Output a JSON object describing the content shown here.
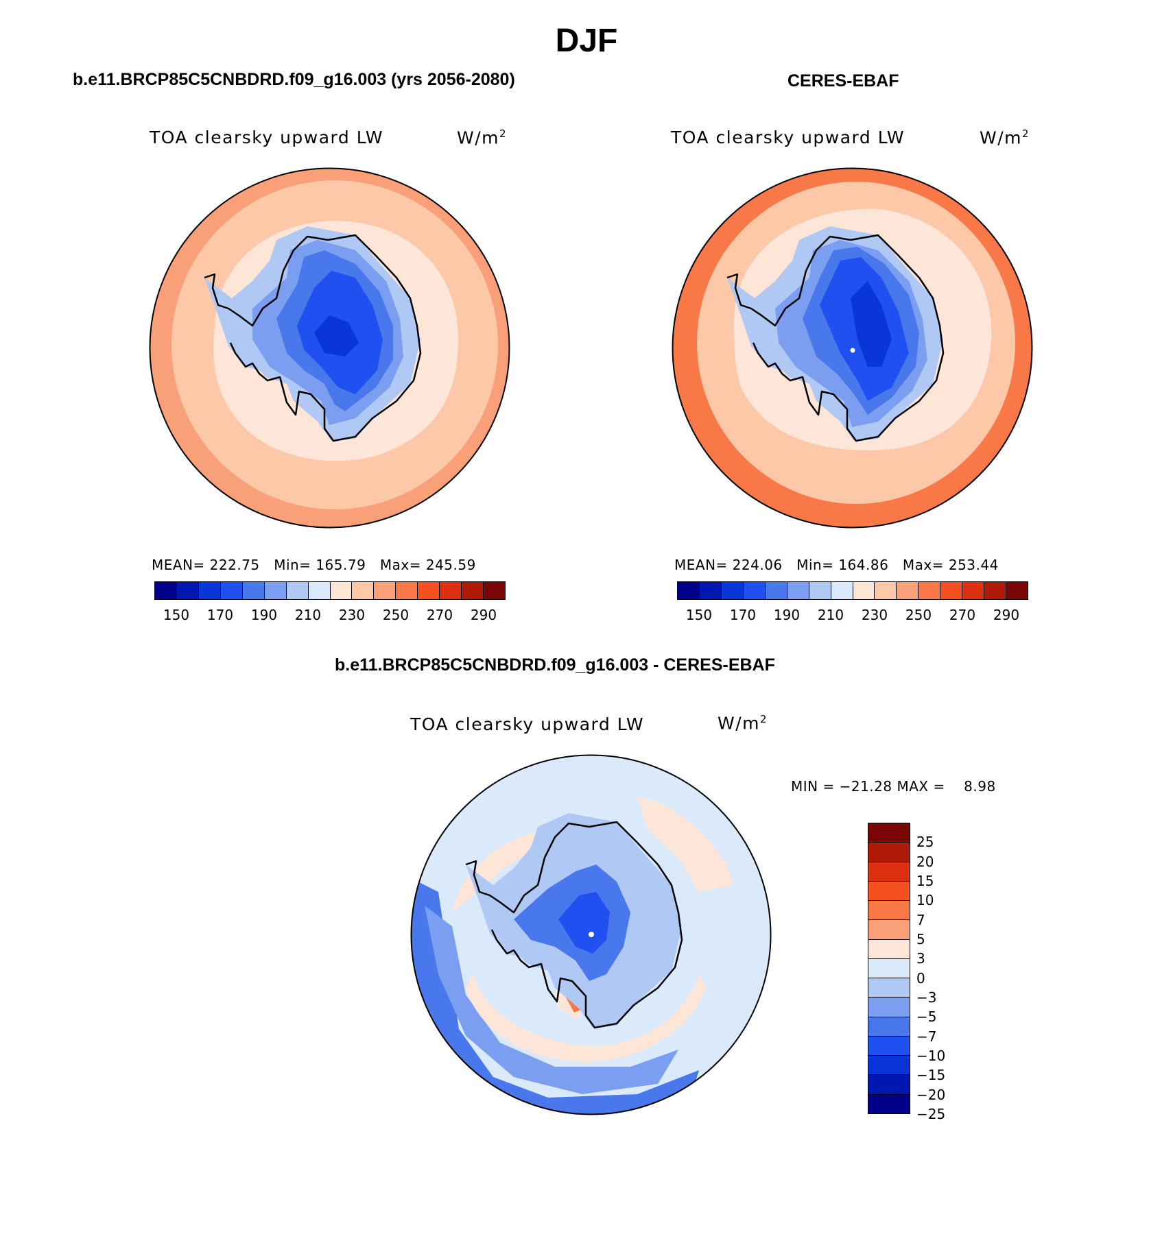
{
  "title": "DJF",
  "panels": [
    {
      "case_title": "b.e11.BRCP85C5CNBDRD.f09_g16.003 (yrs 2056-2080)",
      "variable": "TOA clearsky upward LW",
      "units_base": "W/m",
      "units_exp": "2",
      "mean_label": "MEAN=",
      "mean_value": "222.75",
      "min_label": "Min=",
      "min_value": "165.79",
      "max_label": "Max=",
      "max_value": "245.59"
    },
    {
      "case_title": "CERES-EBAF",
      "variable": "TOA clearsky upward LW",
      "units_base": "W/m",
      "units_exp": "2",
      "mean_label": "MEAN=",
      "mean_value": "224.06",
      "min_label": "Min=",
      "min_value": "164.86",
      "max_label": "Max=",
      "max_value": "253.44"
    }
  ],
  "abs_colorbar": {
    "ticks": [
      "150",
      "170",
      "190",
      "210",
      "230",
      "250",
      "270",
      "290"
    ],
    "colors": [
      "#00008b",
      "#0018b0",
      "#0a35d8",
      "#2050f0",
      "#4878ec",
      "#7c9ef0",
      "#b0c8f4",
      "#daeafa",
      "#fde6d8",
      "#fcc8a8",
      "#f9a078",
      "#f87848",
      "#f55020",
      "#dc3010",
      "#b01a08",
      "#7a0606"
    ]
  },
  "diff_panel": {
    "title": "b.e11.BRCP85C5CNBDRD.f09_g16.003 - CERES-EBAF",
    "variable": "TOA clearsky upward LW",
    "units_base": "W/m",
    "units_exp": "2",
    "minmax_text": "MIN = −21.28 MAX =    8.98",
    "colorbar_ticks": [
      "25",
      "20",
      "15",
      "10",
      "7",
      "5",
      "3",
      "0",
      "−3",
      "−5",
      "−7",
      "−10",
      "−15",
      "−20",
      "−25"
    ],
    "colorbar_colors": [
      "#7a0606",
      "#b01a08",
      "#dc3010",
      "#f55020",
      "#f87848",
      "#f9a078",
      "#fde6d8",
      "#daeafa",
      "#b0c8f4",
      "#7c9ef0",
      "#4878ec",
      "#2050f0",
      "#0a35d8",
      "#0018b0",
      "#00008b"
    ]
  },
  "map_fields": {
    "model_background": "#fcc8a8",
    "model_edge": "#f9a078",
    "obs_edge": "#f87848",
    "diff_background": "#daeafa",
    "antarctica_shades": [
      "#b0c8f4",
      "#7c9ef0",
      "#4878ec",
      "#2050f0",
      "#0a35d8"
    ],
    "ring_light": "#fde6d8",
    "coast_line": "#000000"
  }
}
